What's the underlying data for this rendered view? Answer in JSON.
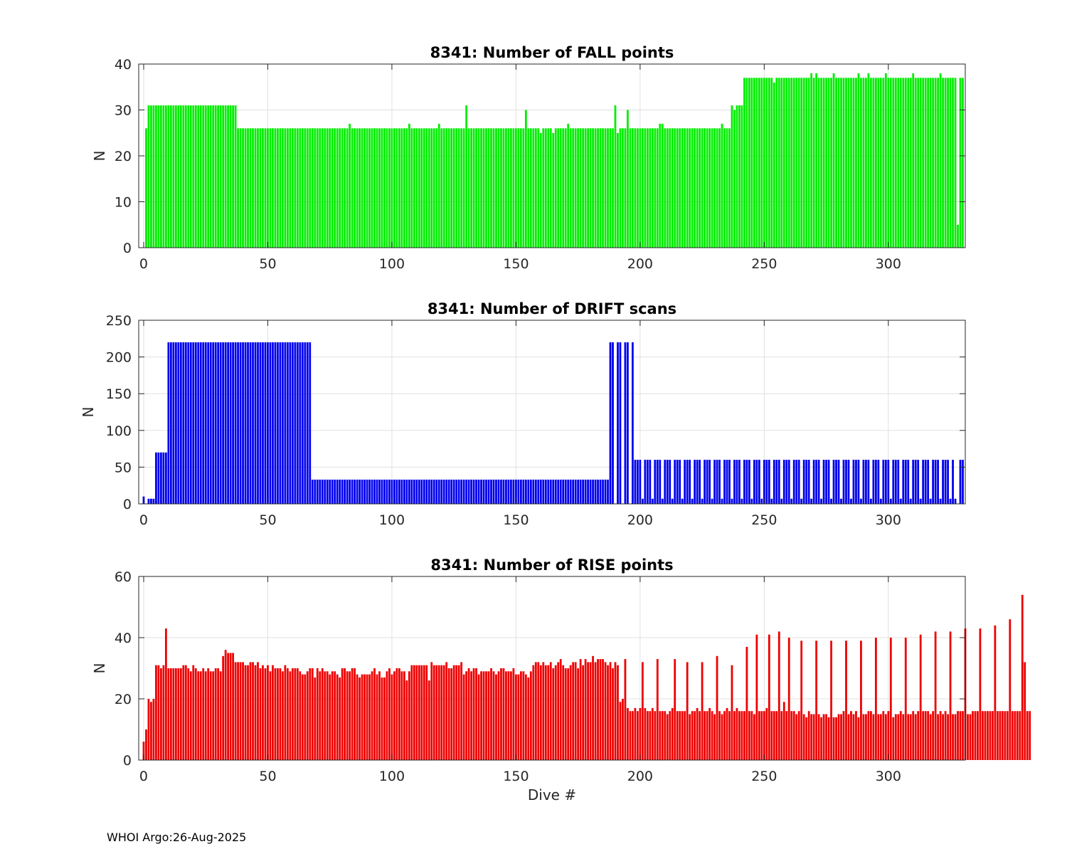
{
  "figure": {
    "footer": "WHOI Argo:26-Aug-2025",
    "xlabel": "Dive #"
  },
  "chart_data": [
    {
      "type": "bar",
      "title": "8341: Number of FALL points",
      "xlabel": "",
      "ylabel": "N",
      "xlim": [
        -2,
        331
      ],
      "ylim": [
        0,
        40
      ],
      "xticks": [
        0,
        50,
        100,
        150,
        200,
        250,
        300
      ],
      "yticks": [
        0,
        10,
        20,
        30,
        40
      ],
      "grid": true,
      "color": "#00ee00",
      "segments": [
        {
          "from": 1,
          "to": 1,
          "value": 26
        },
        {
          "from": 2,
          "to": 37,
          "value": 31
        },
        {
          "from": 38,
          "to": 241,
          "value": 26
        },
        {
          "from": 242,
          "to": 327,
          "value": 37
        },
        {
          "from": 328,
          "to": 328,
          "value": 5
        },
        {
          "from": 329,
          "to": 330,
          "value": 37
        }
      ],
      "overrides": [
        {
          "x": 83,
          "value": 27
        },
        {
          "x": 107,
          "value": 27
        },
        {
          "x": 119,
          "value": 27
        },
        {
          "x": 130,
          "value": 31
        },
        {
          "x": 154,
          "value": 30
        },
        {
          "x": 160,
          "value": 25
        },
        {
          "x": 165,
          "value": 25
        },
        {
          "x": 171,
          "value": 27
        },
        {
          "x": 190,
          "value": 31
        },
        {
          "x": 191,
          "value": 25
        },
        {
          "x": 195,
          "value": 30
        },
        {
          "x": 208,
          "value": 27
        },
        {
          "x": 209,
          "value": 27
        },
        {
          "x": 233,
          "value": 27
        },
        {
          "x": 235,
          "value": 26
        },
        {
          "x": 236,
          "value": 26
        },
        {
          "x": 237,
          "value": 31
        },
        {
          "x": 238,
          "value": 30
        },
        {
          "x": 239,
          "value": 31
        },
        {
          "x": 240,
          "value": 31
        },
        {
          "x": 241,
          "value": 31
        },
        {
          "x": 254,
          "value": 36
        },
        {
          "x": 269,
          "value": 38
        },
        {
          "x": 271,
          "value": 38
        },
        {
          "x": 278,
          "value": 38
        },
        {
          "x": 288,
          "value": 38
        },
        {
          "x": 292,
          "value": 38
        },
        {
          "x": 299,
          "value": 38
        },
        {
          "x": 310,
          "value": 38
        },
        {
          "x": 321,
          "value": 38
        }
      ]
    },
    {
      "type": "bar",
      "title": "8341: Number of DRIFT scans",
      "xlabel": "",
      "ylabel": "N",
      "xlim": [
        -2,
        331
      ],
      "ylim": [
        0,
        250
      ],
      "xticks": [
        0,
        50,
        100,
        150,
        200,
        250,
        300
      ],
      "yticks": [
        0,
        50,
        100,
        150,
        200,
        250
      ],
      "grid": true,
      "color": "#0000ee",
      "segments": [
        {
          "from": 0,
          "to": 0,
          "value": 10
        },
        {
          "from": 2,
          "to": 4,
          "value": 7
        },
        {
          "from": 5,
          "to": 9,
          "value": 70
        },
        {
          "from": 10,
          "to": 67,
          "value": 220
        },
        {
          "from": 68,
          "to": 187,
          "value": 33
        },
        {
          "from": 188,
          "to": 197,
          "value": 220
        },
        {
          "from": 198,
          "to": 330,
          "value": 60
        }
      ],
      "overrides": [
        {
          "x": 190,
          "value": 0
        },
        {
          "x": 193,
          "value": 0
        },
        {
          "x": 196,
          "value": 0
        },
        {
          "x": 201,
          "value": 7
        },
        {
          "x": 205,
          "value": 7
        },
        {
          "x": 209,
          "value": 7
        },
        {
          "x": 213,
          "value": 7
        },
        {
          "x": 217,
          "value": 7
        },
        {
          "x": 221,
          "value": 7
        },
        {
          "x": 225,
          "value": 7
        },
        {
          "x": 229,
          "value": 7
        },
        {
          "x": 233,
          "value": 7
        },
        {
          "x": 237,
          "value": 7
        },
        {
          "x": 241,
          "value": 7
        },
        {
          "x": 245,
          "value": 7
        },
        {
          "x": 249,
          "value": 7
        },
        {
          "x": 253,
          "value": 7
        },
        {
          "x": 257,
          "value": 7
        },
        {
          "x": 261,
          "value": 7
        },
        {
          "x": 265,
          "value": 7
        },
        {
          "x": 269,
          "value": 7
        },
        {
          "x": 273,
          "value": 7
        },
        {
          "x": 277,
          "value": 7
        },
        {
          "x": 281,
          "value": 7
        },
        {
          "x": 285,
          "value": 7
        },
        {
          "x": 289,
          "value": 7
        },
        {
          "x": 293,
          "value": 7
        },
        {
          "x": 297,
          "value": 7
        },
        {
          "x": 301,
          "value": 7
        },
        {
          "x": 305,
          "value": 7
        },
        {
          "x": 309,
          "value": 7
        },
        {
          "x": 313,
          "value": 7
        },
        {
          "x": 317,
          "value": 7
        },
        {
          "x": 321,
          "value": 7
        },
        {
          "x": 325,
          "value": 7
        },
        {
          "x": 327,
          "value": 7
        },
        {
          "x": 328,
          "value": 0
        }
      ]
    },
    {
      "type": "bar",
      "title": "8341: Number of RISE points",
      "xlabel": "Dive #",
      "ylabel": "N",
      "xlim": [
        -2,
        331
      ],
      "ylim": [
        0,
        60
      ],
      "xticks": [
        0,
        50,
        100,
        150,
        200,
        250,
        300
      ],
      "yticks": [
        0,
        20,
        40,
        60
      ],
      "grid": true,
      "color": "#ee0000",
      "x_start": 0,
      "values": [
        6,
        10,
        20,
        19,
        20,
        31,
        31,
        30,
        31,
        43,
        30,
        30,
        30,
        30,
        30,
        30,
        31,
        31,
        30,
        29,
        31,
        30,
        29,
        29,
        30,
        29,
        30,
        29,
        29,
        30,
        30,
        29,
        34,
        36,
        35,
        35,
        35,
        32,
        32,
        32,
        32,
        31,
        31,
        32,
        32,
        31,
        32,
        30,
        31,
        30,
        31,
        29,
        31,
        30,
        30,
        30,
        29,
        31,
        30,
        29,
        30,
        30,
        30,
        29,
        28,
        28,
        29,
        30,
        30,
        27,
        30,
        29,
        30,
        29,
        29,
        28,
        29,
        29,
        28,
        27,
        30,
        30,
        29,
        29,
        30,
        30,
        28,
        27,
        28,
        28,
        28,
        28,
        29,
        30,
        28,
        29,
        27,
        27,
        29,
        30,
        28,
        29,
        30,
        30,
        29,
        29,
        26,
        29,
        31,
        31,
        31,
        31,
        31,
        31,
        31,
        26,
        32,
        31,
        31,
        31,
        31,
        31,
        32,
        30,
        30,
        31,
        31,
        31,
        32,
        28,
        29,
        30,
        29,
        30,
        30,
        28,
        29,
        29,
        29,
        29,
        30,
        29,
        28,
        29,
        30,
        30,
        29,
        29,
        29,
        30,
        28,
        28,
        29,
        29,
        28,
        27,
        29,
        31,
        32,
        32,
        31,
        32,
        31,
        31,
        32,
        30,
        31,
        32,
        33,
        31,
        30,
        30,
        31,
        32,
        32,
        30,
        33,
        31,
        33,
        32,
        32,
        34,
        32,
        33,
        33,
        33,
        32,
        31,
        32,
        30,
        32,
        31,
        19,
        20,
        33,
        17,
        16,
        16,
        17,
        16,
        17,
        32,
        17,
        16,
        16,
        17,
        16,
        33,
        16,
        16,
        16,
        15,
        16,
        17,
        33,
        16,
        16,
        16,
        16,
        32,
        15,
        16,
        16,
        17,
        16,
        32,
        16,
        16,
        17,
        16,
        15,
        34,
        16,
        15,
        16,
        17,
        16,
        31,
        16,
        17,
        16,
        16,
        16,
        37,
        16,
        16,
        15,
        41,
        16,
        16,
        16,
        17,
        41,
        16,
        16,
        16,
        42,
        16,
        19,
        16,
        40,
        16,
        16,
        15,
        16,
        39,
        15,
        14,
        16,
        15,
        15,
        39,
        15,
        14,
        15,
        15,
        14,
        39,
        14,
        14,
        15,
        15,
        16,
        39,
        15,
        16,
        15,
        16,
        14,
        39,
        15,
        15,
        16,
        16,
        15,
        40,
        15,
        15,
        16,
        15,
        16,
        40,
        14,
        15,
        15,
        16,
        15,
        40,
        15,
        15,
        16,
        15,
        16,
        41,
        16,
        16,
        16,
        15,
        16,
        42,
        15,
        16,
        15,
        16,
        15,
        42,
        15,
        15,
        16,
        16,
        16,
        43,
        15,
        15,
        16,
        16,
        16,
        43,
        16,
        16,
        16,
        16,
        16,
        44,
        16,
        16,
        16,
        16,
        16,
        46,
        16,
        16,
        16,
        16,
        54,
        32,
        16,
        16
      ]
    }
  ]
}
